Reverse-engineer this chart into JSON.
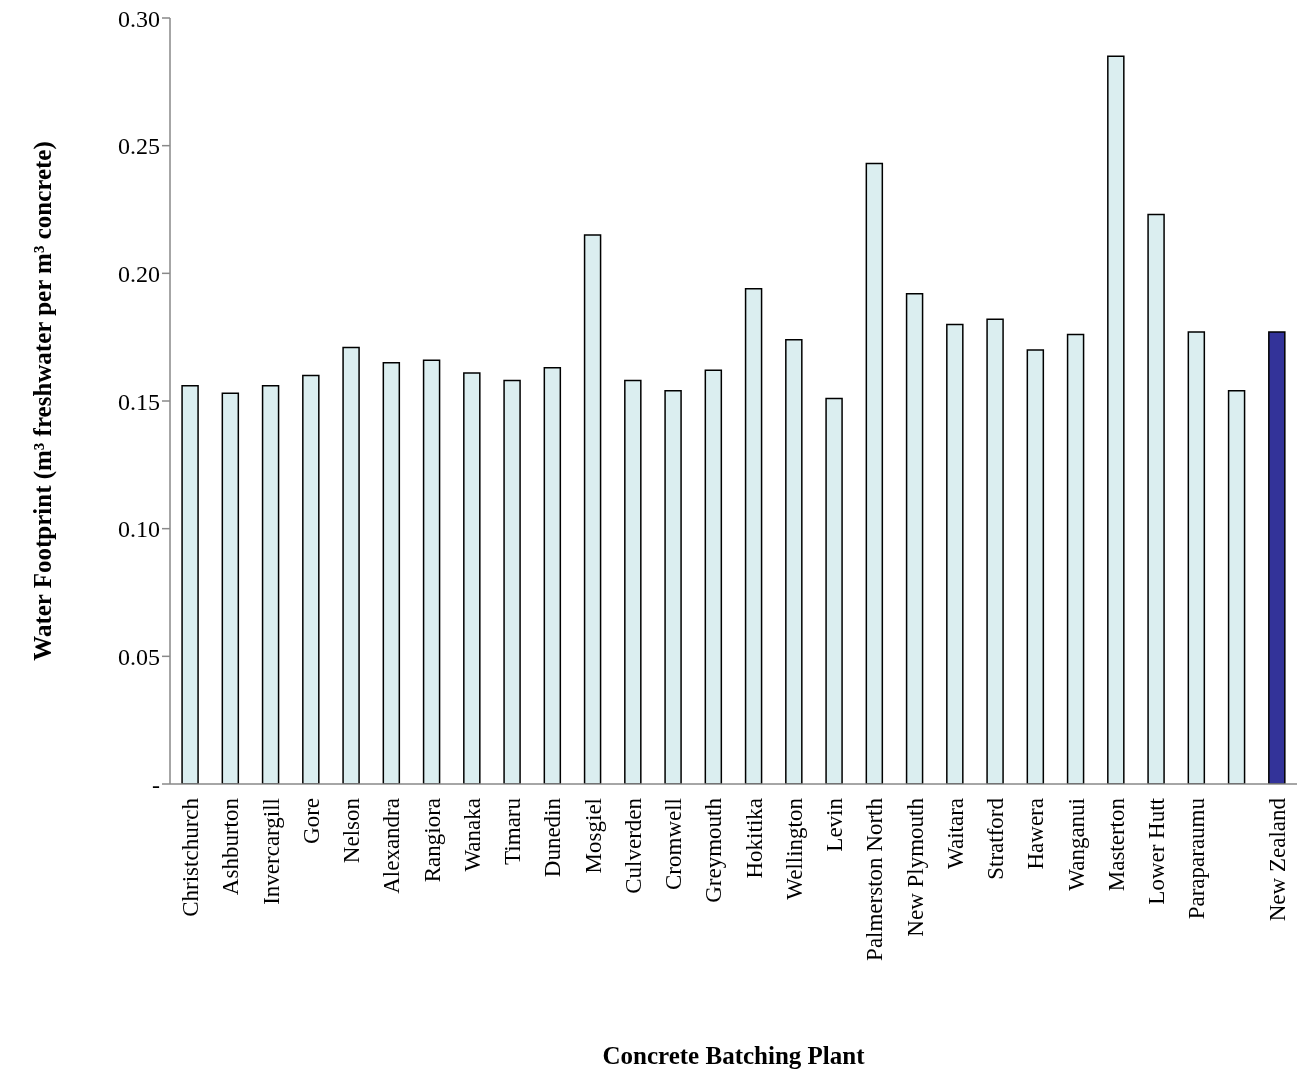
{
  "chart_data": {
    "type": "bar",
    "xlabel": "Concrete Batching Plant",
    "ylabel": "Water Footprint (m³ freshwater per m³ concrete)",
    "categories": [
      "Christchurch",
      "Ashburton",
      "Invercargill",
      "Gore",
      "Nelson",
      "Alexandra",
      "Rangiora",
      "Wanaka",
      "Timaru",
      "Dunedin",
      "Mosgiel",
      "Culverden",
      "Cromwell",
      "Greymouth",
      "Hokitika",
      "Wellington",
      "Levin",
      "Palmerston North",
      "New Plymouth",
      "Waitara",
      "Stratford",
      "Hawera",
      "Wanganui",
      "Masterton",
      "Lower Hutt",
      "Paraparaumu",
      null,
      "New Zealand"
    ],
    "values": [
      0.156,
      0.153,
      0.156,
      0.16,
      0.171,
      0.165,
      0.166,
      0.161,
      0.158,
      0.163,
      0.215,
      0.158,
      0.154,
      0.162,
      0.194,
      0.174,
      0.151,
      0.243,
      0.192,
      0.18,
      0.182,
      0.17,
      0.176,
      0.285,
      0.223,
      0.177,
      0.154,
      0.177
    ],
    "colors": [
      "#dbeef0",
      "#dbeef0",
      "#dbeef0",
      "#dbeef0",
      "#dbeef0",
      "#dbeef0",
      "#dbeef0",
      "#dbeef0",
      "#dbeef0",
      "#dbeef0",
      "#dbeef0",
      "#dbeef0",
      "#dbeef0",
      "#dbeef0",
      "#dbeef0",
      "#dbeef0",
      "#dbeef0",
      "#dbeef0",
      "#dbeef0",
      "#dbeef0",
      "#dbeef0",
      "#dbeef0",
      "#dbeef0",
      "#dbeef0",
      "#dbeef0",
      "#dbeef0",
      "#dbeef0",
      "#333399"
    ],
    "ylim": [
      0,
      0.3
    ],
    "yticks": [
      {
        "value": 0,
        "label": "-"
      },
      0.05,
      {
        "value": 0.1,
        "label": "0.10"
      },
      0.15,
      {
        "value": 0.2,
        "label": "0.20"
      },
      0.25,
      {
        "value": 0.3,
        "label": "0.30"
      }
    ]
  }
}
